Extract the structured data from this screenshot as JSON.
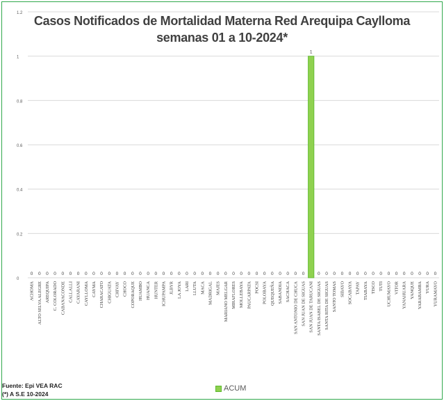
{
  "chart_data": {
    "type": "bar",
    "title_line1": "Casos  Notificados de Mortalidad Materna Red Arequipa Caylloma",
    "title_line2": "semanas 01 a 10-2024*",
    "categories": [
      "ACHOMA",
      "ALTO SELVA ALEGRE",
      "AREQUIPA",
      "C. COLORADO",
      "CABANACONDE",
      "CALLALLI",
      "CAYARANI",
      "CAYLLOMA",
      "CAYMA",
      "CHARACATO",
      "CHIGUATA",
      "CHIVAY",
      "CHOCO",
      "COPORAQUE",
      "HUAMBO",
      "HUANCA",
      "HUNTER",
      "ICHUPAMPA",
      "JLBYR",
      "LA JOYA",
      "LARI",
      "LLUTA",
      "MACA",
      "MADRIGAL",
      "MAJES",
      "MARIANO MELGAR",
      "MIRAFLORES",
      "MOLLEBAYA",
      "PAUCARPATA",
      "POCSI",
      "POLOBAYA",
      "QUEQUEÑA",
      "SABANDIA",
      "SACHACA",
      "SAN ANTONIO DE CHUCA",
      "SAN JUAN DE SIGUAS",
      "SAN JUAN DE TARUCANI",
      "SANTA ISABEL DE SIGUAS",
      "SANTA RITA DE SIGUAS",
      "SANTO TOMAS",
      "SIBAYO",
      "SOCABAYA",
      "TAPAY",
      "TIABAYA",
      "TISCO",
      "TUTI",
      "UCHUMAYO",
      "VITOR",
      "YANAHUARA",
      "YANQUE",
      "YARABAMBA",
      "YURA",
      "YURAMAYO"
    ],
    "series": [
      {
        "name": "ACUM",
        "values": [
          0,
          0,
          0,
          0,
          0,
          0,
          0,
          0,
          0,
          0,
          0,
          0,
          0,
          0,
          0,
          0,
          0,
          0,
          0,
          0,
          0,
          0,
          0,
          0,
          0,
          0,
          0,
          0,
          0,
          0,
          0,
          0,
          0,
          0,
          0,
          0,
          1,
          0,
          0,
          0,
          0,
          0,
          0,
          0,
          0,
          0,
          0,
          0,
          0,
          0,
          0,
          0,
          0
        ]
      }
    ],
    "ylim": [
      0,
      1.2
    ],
    "yticks": [
      "0",
      "0.2",
      "0.4",
      "0.6",
      "0.8",
      "1",
      "1.2"
    ],
    "grid": true,
    "legend_position": "bottom",
    "bar_color": "#8fd14f",
    "bar_edge_color": "#5cb82e"
  },
  "footer": {
    "source_line1": "Fuente: Epi VEA RAC",
    "source_line2": "(*) A S.E  10-2024"
  },
  "legend": {
    "label": "ACUM"
  },
  "colors": {
    "frame": "#2ea84a",
    "grid": "#d9d9d9",
    "text": "#404040"
  }
}
